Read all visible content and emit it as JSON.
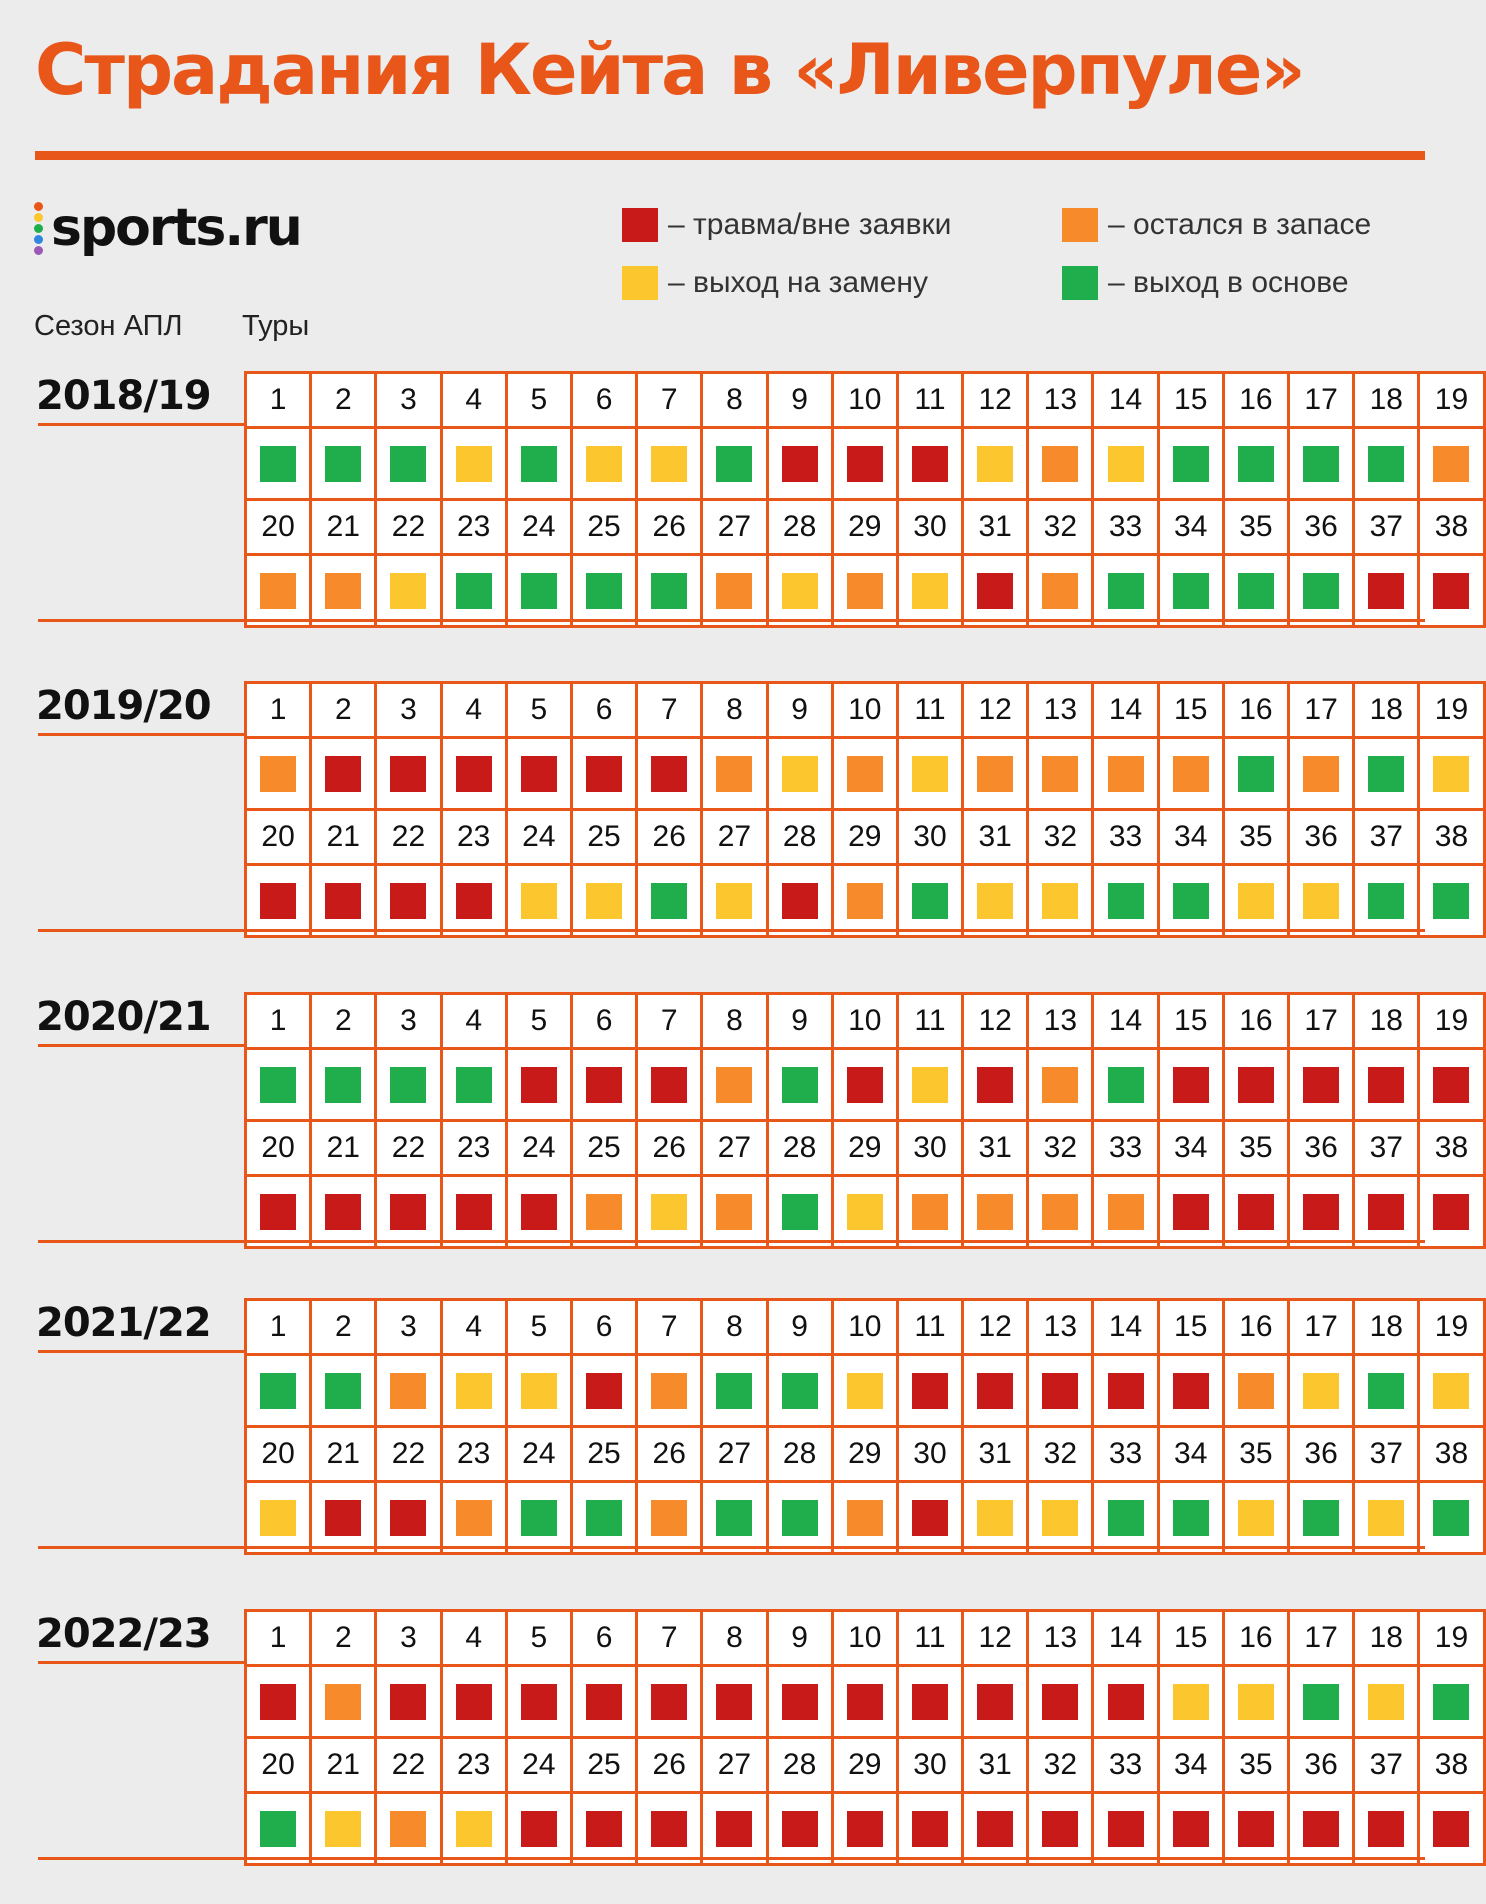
{
  "header": {
    "title": "Страдания Кейта в «Ливерпуле»",
    "brand": "sports.ru",
    "col_season": "Сезон АПЛ",
    "col_rounds": "Туры"
  },
  "colors": {
    "accent": "#e8561a",
    "injury": "#c91a1a",
    "bench": "#f78a2b",
    "sub": "#fcc72e",
    "start": "#1fae4b",
    "brand_dots": [
      "#e8561a",
      "#fcc72e",
      "#1fae4b",
      "#2e86de",
      "#9b59b6"
    ]
  },
  "legend": [
    {
      "key": "injury",
      "label": "– травма/вне заявки"
    },
    {
      "key": "bench",
      "label": "– остался в запасе"
    },
    {
      "key": "sub",
      "label": "– выход на замену"
    },
    {
      "key": "start",
      "label": "– выход в основе"
    }
  ],
  "chart_data": {
    "type": "table",
    "title": "Страдания Кейта в «Ливерпуле»",
    "status_codes": {
      "I": "травма/вне заявки",
      "B": "остался в запасе",
      "S": "выход на замену",
      "G": "выход в основе"
    },
    "rounds": [
      1,
      2,
      3,
      4,
      5,
      6,
      7,
      8,
      9,
      10,
      11,
      12,
      13,
      14,
      15,
      16,
      17,
      18,
      19,
      20,
      21,
      22,
      23,
      24,
      25,
      26,
      27,
      28,
      29,
      30,
      31,
      32,
      33,
      34,
      35,
      36,
      37,
      38
    ],
    "seasons": [
      {
        "season": "2018/19",
        "status": [
          "G",
          "G",
          "G",
          "S",
          "G",
          "S",
          "S",
          "G",
          "I",
          "I",
          "I",
          "S",
          "B",
          "S",
          "G",
          "G",
          "G",
          "G",
          "B",
          "B",
          "B",
          "S",
          "G",
          "G",
          "G",
          "G",
          "B",
          "S",
          "B",
          "S",
          "I",
          "B",
          "G",
          "G",
          "G",
          "G",
          "I",
          "I"
        ]
      },
      {
        "season": "2019/20",
        "status": [
          "B",
          "I",
          "I",
          "I",
          "I",
          "I",
          "I",
          "B",
          "S",
          "B",
          "S",
          "B",
          "B",
          "B",
          "B",
          "G",
          "B",
          "G",
          "S",
          "I",
          "I",
          "I",
          "I",
          "S",
          "S",
          "G",
          "S",
          "I",
          "B",
          "G",
          "S",
          "S",
          "G",
          "G",
          "S",
          "S",
          "G",
          "G"
        ]
      },
      {
        "season": "2020/21",
        "status": [
          "G",
          "G",
          "G",
          "G",
          "I",
          "I",
          "I",
          "B",
          "G",
          "I",
          "S",
          "I",
          "B",
          "G",
          "I",
          "I",
          "I",
          "I",
          "I",
          "I",
          "I",
          "I",
          "I",
          "I",
          "B",
          "S",
          "B",
          "G",
          "S",
          "B",
          "B",
          "B",
          "B",
          "I",
          "I",
          "I",
          "I",
          "I"
        ]
      },
      {
        "season": "2021/22",
        "status": [
          "G",
          "G",
          "B",
          "S",
          "S",
          "I",
          "B",
          "G",
          "G",
          "S",
          "I",
          "I",
          "I",
          "I",
          "I",
          "B",
          "S",
          "G",
          "S",
          "S",
          "I",
          "I",
          "B",
          "G",
          "G",
          "B",
          "G",
          "G",
          "B",
          "I",
          "S",
          "S",
          "G",
          "G",
          "S",
          "G",
          "S",
          "G"
        ]
      },
      {
        "season": "2022/23",
        "status": [
          "I",
          "B",
          "I",
          "I",
          "I",
          "I",
          "I",
          "I",
          "I",
          "I",
          "I",
          "I",
          "I",
          "I",
          "S",
          "S",
          "G",
          "S",
          "G",
          "G",
          "S",
          "B",
          "S",
          "I",
          "I",
          "I",
          "I",
          "I",
          "I",
          "I",
          "I",
          "I",
          "I",
          "I",
          "I",
          "I",
          "I",
          "I"
        ]
      }
    ]
  }
}
